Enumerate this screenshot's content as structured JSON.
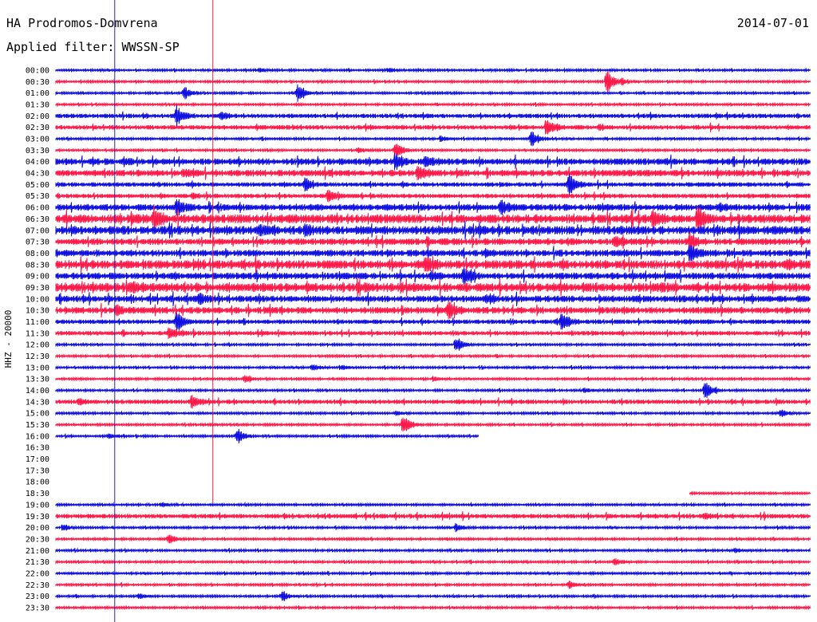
{
  "header": {
    "station": "HA Prodromos-Domvrena",
    "filter": "Applied filter: WWSSN-SP",
    "date": "2014-07-01"
  },
  "colors": {
    "blue": "#1010e0",
    "red": "#ff1a4a",
    "marker_blue": "#2222cc",
    "marker_red": "#dd2244"
  },
  "chart_data": {
    "type": "line",
    "title": "HA Prodromos-Domvrena",
    "ylabel": "HHZ - 20000",
    "xlabel": "",
    "row_interval_minutes": 30,
    "y_categories": [
      "00:00",
      "00:30",
      "01:00",
      "01:30",
      "02:00",
      "02:30",
      "03:00",
      "03:30",
      "04:00",
      "04:30",
      "05:00",
      "05:30",
      "06:00",
      "06:30",
      "07:00",
      "07:30",
      "08:00",
      "08:30",
      "09:00",
      "09:30",
      "10:00",
      "10:30",
      "11:00",
      "11:30",
      "12:00",
      "12:30",
      "13:00",
      "13:30",
      "14:00",
      "14:30",
      "15:00",
      "15:30",
      "16:00",
      "16:30",
      "17:00",
      "17:30",
      "18:00",
      "18:30",
      "19:00",
      "19:30",
      "20:00",
      "20:30",
      "21:00",
      "21:30",
      "22:00",
      "22:30",
      "23:00",
      "23:30"
    ],
    "row_colors": [
      "blue",
      "red"
    ],
    "gap": {
      "start": "16:30",
      "end": "18:30"
    },
    "series": [
      {
        "time": "00:00",
        "amplitude": 1,
        "events": [
          [
            27,
            3
          ],
          [
            44,
            3
          ]
        ]
      },
      {
        "time": "00:30",
        "amplitude": 1,
        "events": [
          [
            73,
            16
          ],
          [
            75,
            3
          ]
        ]
      },
      {
        "time": "01:00",
        "amplitude": 1,
        "events": [
          [
            17,
            8
          ],
          [
            32,
            12
          ]
        ]
      },
      {
        "time": "01:30",
        "amplitude": 1,
        "events": []
      },
      {
        "time": "02:00",
        "amplitude": 2,
        "events": [
          [
            16,
            12
          ],
          [
            22,
            4
          ]
        ]
      },
      {
        "time": "02:30",
        "amplitude": 2,
        "events": [
          [
            65,
            8
          ],
          [
            72,
            3
          ]
        ]
      },
      {
        "time": "03:00",
        "amplitude": 1,
        "events": [
          [
            63,
            10
          ],
          [
            51,
            4
          ]
        ]
      },
      {
        "time": "03:30",
        "amplitude": 1,
        "events": [
          [
            45,
            10
          ],
          [
            40,
            3
          ]
        ]
      },
      {
        "time": "04:00",
        "amplitude": 3,
        "events": [
          [
            45,
            8
          ],
          [
            49,
            5
          ],
          [
            9,
            3
          ]
        ]
      },
      {
        "time": "04:30",
        "amplitude": 3,
        "events": [
          [
            48,
            10
          ],
          [
            17,
            3
          ]
        ]
      },
      {
        "time": "05:00",
        "amplitude": 2,
        "events": [
          [
            33,
            8
          ],
          [
            68,
            14
          ]
        ]
      },
      {
        "time": "05:30",
        "amplitude": 2,
        "events": [
          [
            36,
            8
          ],
          [
            18,
            3
          ]
        ]
      },
      {
        "time": "06:00",
        "amplitude": 3,
        "events": [
          [
            16,
            10
          ],
          [
            59,
            8
          ],
          [
            88,
            4
          ]
        ]
      },
      {
        "time": "06:30",
        "amplitude": 4,
        "events": [
          [
            13,
            10
          ],
          [
            79,
            10
          ],
          [
            85,
            16
          ],
          [
            10,
            3
          ]
        ]
      },
      {
        "time": "07:00",
        "amplitude": 4,
        "events": [
          [
            27,
            4
          ],
          [
            33,
            5
          ],
          [
            56,
            3
          ]
        ]
      },
      {
        "time": "07:30",
        "amplitude": 3,
        "events": [
          [
            84,
            10
          ],
          [
            74,
            6
          ]
        ]
      },
      {
        "time": "08:00",
        "amplitude": 3,
        "events": [
          [
            84,
            12
          ],
          [
            57,
            3
          ]
        ]
      },
      {
        "time": "08:30",
        "amplitude": 4,
        "events": [
          [
            49,
            10
          ],
          [
            97,
            3
          ]
        ]
      },
      {
        "time": "09:00",
        "amplitude": 3,
        "events": [
          [
            54,
            10
          ],
          [
            50,
            4
          ]
        ]
      },
      {
        "time": "09:30",
        "amplitude": 4,
        "events": [
          [
            10,
            5
          ],
          [
            40,
            4
          ],
          [
            80,
            3
          ]
        ]
      },
      {
        "time": "10:00",
        "amplitude": 3,
        "events": [
          [
            19,
            6
          ],
          [
            57,
            3
          ]
        ]
      },
      {
        "time": "10:30",
        "amplitude": 3,
        "events": [
          [
            52,
            10
          ],
          [
            8,
            5
          ]
        ]
      },
      {
        "time": "11:00",
        "amplitude": 2,
        "events": [
          [
            16,
            12
          ],
          [
            67,
            12
          ]
        ]
      },
      {
        "time": "11:30",
        "amplitude": 2,
        "events": [
          [
            15,
            8
          ]
        ]
      },
      {
        "time": "12:00",
        "amplitude": 1,
        "events": [
          [
            53,
            10
          ]
        ]
      },
      {
        "time": "12:30",
        "amplitude": 1,
        "events": []
      },
      {
        "time": "13:00",
        "amplitude": 1,
        "events": [
          [
            34,
            4
          ],
          [
            38,
            3
          ]
        ]
      },
      {
        "time": "13:30",
        "amplitude": 1,
        "events": [
          [
            25,
            5
          ],
          [
            50,
            3
          ]
        ]
      },
      {
        "time": "14:00",
        "amplitude": 1,
        "events": [
          [
            86,
            12
          ],
          [
            70,
            3
          ]
        ]
      },
      {
        "time": "14:30",
        "amplitude": 2,
        "events": [
          [
            18,
            8
          ],
          [
            3,
            3
          ]
        ]
      },
      {
        "time": "15:00",
        "amplitude": 1,
        "events": [
          [
            45,
            3
          ],
          [
            96,
            4
          ]
        ]
      },
      {
        "time": "15:30",
        "amplitude": 1,
        "events": [
          [
            46,
            14
          ]
        ]
      },
      {
        "time": "16:00",
        "amplitude": 1,
        "events": [
          [
            24,
            10
          ],
          [
            7,
            3
          ]
        ],
        "end": 56
      },
      {
        "time": "18:30",
        "amplitude": 1,
        "events": [],
        "start": 84
      },
      {
        "time": "19:00",
        "amplitude": 1,
        "events": [
          [
            14,
            3
          ]
        ]
      },
      {
        "time": "19:30",
        "amplitude": 2,
        "events": [
          [
            86,
            3
          ]
        ]
      },
      {
        "time": "20:00",
        "amplitude": 1,
        "events": [
          [
            1,
            4
          ],
          [
            53,
            5
          ]
        ]
      },
      {
        "time": "20:30",
        "amplitude": 1,
        "events": [
          [
            15,
            6
          ]
        ]
      },
      {
        "time": "21:00",
        "amplitude": 1,
        "events": [
          [
            90,
            3
          ]
        ]
      },
      {
        "time": "21:30",
        "amplitude": 1,
        "events": [
          [
            74,
            5
          ]
        ]
      },
      {
        "time": "22:00",
        "amplitude": 1,
        "events": []
      },
      {
        "time": "22:30",
        "amplitude": 1,
        "events": [
          [
            68,
            5
          ]
        ]
      },
      {
        "time": "23:00",
        "amplitude": 1,
        "events": [
          [
            30,
            7
          ],
          [
            11,
            4
          ]
        ]
      },
      {
        "time": "23:30",
        "amplitude": 1,
        "events": []
      }
    ],
    "markers": [
      {
        "name": "blue-marker",
        "x": 7.8,
        "color": "marker_blue",
        "from": "00:00",
        "to": "23:30"
      },
      {
        "name": "red-marker",
        "x": 20.8,
        "color": "marker_red",
        "from": "00:00",
        "to": "19:00"
      }
    ]
  }
}
